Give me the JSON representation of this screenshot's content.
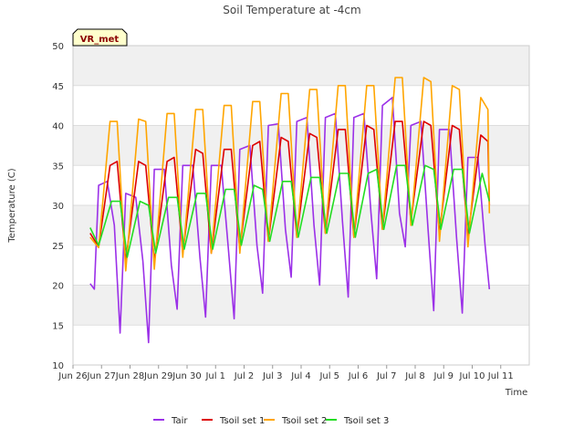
{
  "chart_data": {
    "type": "line",
    "title": "Soil Temperature at -4cm",
    "xlabel": "Time",
    "ylabel": "Temperature (C)",
    "badge": "VR_met",
    "ylim": [
      10,
      50
    ],
    "yticks": [
      10,
      15,
      20,
      25,
      30,
      35,
      40,
      45,
      50
    ],
    "xlim": [
      0,
      16
    ],
    "xticks": [
      {
        "x": 0,
        "label": "Jun 26"
      },
      {
        "x": 1,
        "label": "Jun 27"
      },
      {
        "x": 2,
        "label": "Jun 28"
      },
      {
        "x": 3,
        "label": "Jun 29"
      },
      {
        "x": 4,
        "label": "Jun 30"
      },
      {
        "x": 5,
        "label": "Jul 1"
      },
      {
        "x": 6,
        "label": "Jul 2"
      },
      {
        "x": 7,
        "label": "Jul 3"
      },
      {
        "x": 8,
        "label": "Jul 4"
      },
      {
        "x": 9,
        "label": "Jul 5"
      },
      {
        "x": 10,
        "label": "Jul 6"
      },
      {
        "x": 11,
        "label": "Jul 7"
      },
      {
        "x": 12,
        "label": "Jul 8"
      },
      {
        "x": 13,
        "label": "Jul 9"
      },
      {
        "x": 14,
        "label": "Jul 10"
      },
      {
        "x": 15,
        "label": "Jul 11"
      }
    ],
    "grid": true,
    "legend_position": "bottom",
    "background_bands": "#f0f0f0",
    "series": [
      {
        "name": "Tair",
        "color": "#9b30e8",
        "x": [
          0.6,
          0.75,
          0.9,
          1.2,
          1.45,
          1.65,
          1.85,
          2.2,
          2.45,
          2.65,
          2.85,
          3.2,
          3.45,
          3.65,
          3.85,
          4.2,
          4.45,
          4.65,
          4.85,
          5.2,
          5.45,
          5.65,
          5.85,
          6.2,
          6.45,
          6.65,
          6.85,
          7.2,
          7.45,
          7.65,
          7.85,
          8.2,
          8.45,
          8.65,
          8.85,
          9.2,
          9.45,
          9.65,
          9.85,
          10.2,
          10.45,
          10.65,
          10.85,
          11.2,
          11.45,
          11.65,
          11.85,
          12.2,
          12.45,
          12.65,
          12.85,
          13.2,
          13.45,
          13.65,
          13.85,
          14.2,
          14.45,
          14.6
        ],
        "y": [
          20.2,
          19.5,
          32.5,
          33.0,
          27.5,
          14.0,
          31.5,
          31.0,
          23.0,
          12.8,
          34.5,
          34.5,
          22.5,
          17.0,
          35.0,
          35.0,
          23.5,
          16.0,
          35.0,
          35.0,
          24.5,
          15.8,
          37.0,
          37.5,
          25.0,
          19.0,
          40.0,
          40.2,
          27.0,
          21.0,
          40.5,
          41.0,
          27.5,
          20.0,
          41.0,
          41.5,
          28.0,
          18.5,
          41.0,
          41.5,
          29.0,
          20.8,
          42.5,
          43.5,
          29.0,
          24.8,
          40.0,
          40.5,
          27.0,
          16.8,
          39.5,
          39.5,
          26.0,
          16.5,
          36.0,
          36.0,
          25.0,
          19.5
        ]
      },
      {
        "name": "Tsoil set 1",
        "color": "#dd0000",
        "x": [
          0.6,
          0.9,
          1.3,
          1.55,
          1.85,
          2.3,
          2.55,
          2.85,
          3.3,
          3.55,
          3.85,
          4.3,
          4.55,
          4.85,
          5.3,
          5.55,
          5.85,
          6.3,
          6.55,
          6.85,
          7.3,
          7.55,
          7.85,
          8.3,
          8.55,
          8.85,
          9.3,
          9.55,
          9.85,
          10.3,
          10.55,
          10.85,
          11.3,
          11.55,
          11.85,
          12.3,
          12.55,
          12.85,
          13.3,
          13.55,
          13.85,
          14.3,
          14.55,
          14.6
        ],
        "y": [
          26.5,
          24.8,
          35.0,
          35.5,
          23.0,
          35.5,
          35.0,
          23.0,
          35.5,
          36.0,
          24.0,
          37.0,
          36.5,
          24.0,
          37.0,
          37.0,
          24.5,
          37.5,
          38.0,
          25.5,
          38.5,
          38.0,
          26.0,
          39.0,
          38.5,
          26.5,
          39.5,
          39.5,
          26.0,
          40.0,
          39.5,
          27.0,
          40.5,
          40.5,
          28.0,
          40.5,
          40.0,
          26.5,
          40.0,
          39.5,
          26.0,
          38.8,
          38.0,
          30.0
        ]
      },
      {
        "name": "Tsoil set 2",
        "color": "#ffa500",
        "x": [
          0.6,
          0.9,
          1.3,
          1.55,
          1.85,
          2.3,
          2.55,
          2.85,
          3.3,
          3.55,
          3.85,
          4.3,
          4.55,
          4.85,
          5.3,
          5.55,
          5.85,
          6.3,
          6.55,
          6.85,
          7.3,
          7.55,
          7.85,
          8.3,
          8.55,
          8.85,
          9.3,
          9.55,
          9.85,
          10.3,
          10.55,
          10.85,
          11.3,
          11.55,
          11.85,
          12.3,
          12.55,
          12.85,
          13.3,
          13.55,
          13.85,
          14.3,
          14.55,
          14.6
        ],
        "y": [
          26.0,
          24.7,
          40.5,
          40.5,
          21.8,
          40.8,
          40.5,
          22.0,
          41.5,
          41.5,
          23.5,
          42.0,
          42.0,
          24.0,
          42.5,
          42.5,
          24.0,
          43.0,
          43.0,
          25.5,
          44.0,
          44.0,
          26.0,
          44.5,
          44.5,
          26.5,
          45.0,
          45.0,
          26.0,
          45.0,
          45.0,
          27.0,
          46.0,
          46.0,
          27.5,
          46.0,
          45.5,
          25.5,
          45.0,
          44.5,
          24.8,
          43.5,
          42.0,
          29.0
        ]
      },
      {
        "name": "Tsoil set 3",
        "color": "#22dd22",
        "x": [
          0.6,
          0.9,
          1.35,
          1.65,
          1.9,
          2.35,
          2.65,
          2.9,
          3.35,
          3.65,
          3.9,
          4.35,
          4.65,
          4.9,
          5.35,
          5.65,
          5.9,
          6.35,
          6.65,
          6.9,
          7.35,
          7.65,
          7.9,
          8.35,
          8.65,
          8.9,
          9.35,
          9.65,
          9.9,
          10.35,
          10.65,
          10.9,
          11.35,
          11.65,
          11.9,
          12.35,
          12.65,
          12.9,
          13.35,
          13.65,
          13.9,
          14.35,
          14.6
        ],
        "y": [
          27.2,
          25.0,
          30.5,
          30.5,
          23.5,
          30.5,
          30.0,
          24.0,
          31.0,
          31.0,
          24.5,
          31.5,
          31.5,
          24.5,
          32.0,
          32.0,
          25.0,
          32.5,
          32.0,
          25.5,
          33.0,
          33.0,
          26.0,
          33.5,
          33.5,
          26.5,
          34.0,
          34.0,
          26.0,
          34.0,
          34.5,
          27.0,
          35.0,
          35.0,
          27.5,
          35.0,
          34.5,
          27.0,
          34.5,
          34.5,
          26.5,
          34.0,
          30.5
        ]
      }
    ]
  }
}
